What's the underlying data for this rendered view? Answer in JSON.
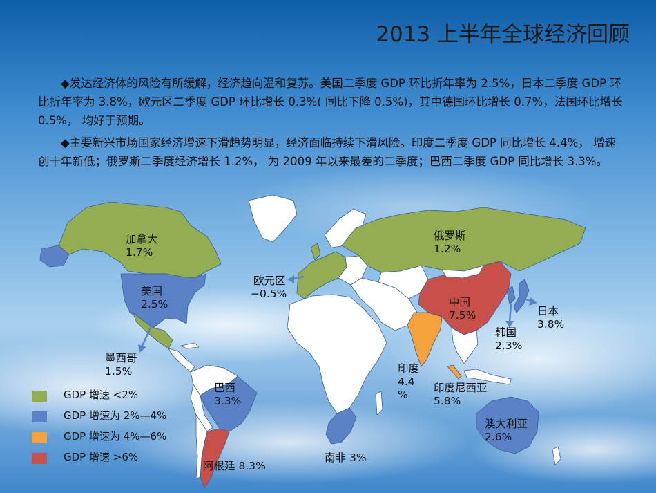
{
  "title": "2013 上半年全球经济回顾",
  "paragraphs": [
    "◆发达经济体的风险有所缓解，经济趋向温和复苏。美国二季度 GDP 环比折年率为 2.5%，日本二季度 GDP 环比折年率为 3.8%，欧元区二季度 GDP 环比增长 0.3%( 同比下降 0.5%)，其中德国环比增长 0.7%，法国环比增长 0.5%， 均好于预期。",
    "◆主要新兴市场国家经济增速下滑趋势明显，经济面临持续下滑风险。印度二季度 GDP 同比增长 4.4%， 增速创十年新低；俄罗斯二季度经济增长 1.2%， 为 2009 年以来最差的二季度；巴西二季度 GDP 同比增长 3.3%。"
  ],
  "colors": {
    "green": "#92ad52",
    "blue": "#5b82c6",
    "orange": "#f5a13c",
    "red": "#c8504a",
    "white_land": "#ffffff",
    "border": "#3d5f94"
  },
  "regions": [
    {
      "name": "加拿大",
      "value": "1.7%",
      "color": "green"
    },
    {
      "name": "美国",
      "value": "2.5%",
      "color": "blue"
    },
    {
      "name": "墨西哥",
      "value": "1.5%",
      "color": "green"
    },
    {
      "name": "欧元区",
      "value": "−0.5%",
      "color": "green"
    },
    {
      "name": "俄罗斯",
      "value": "1.2%",
      "color": "green"
    },
    {
      "name": "中国",
      "value": "7.5%",
      "color": "red"
    },
    {
      "name": "日本",
      "value": "3.8%",
      "color": "blue"
    },
    {
      "name": "韩国",
      "value": "2.3%",
      "color": "blue"
    },
    {
      "name": "印度",
      "value_lines": [
        "4.4",
        "%"
      ],
      "color": "orange"
    },
    {
      "name": "印度尼西亚",
      "value": "5.8%",
      "color": "orange"
    },
    {
      "name": "巴西",
      "value": "3.3%",
      "color": "blue"
    },
    {
      "name": "阿根廷",
      "value": "8.3%",
      "color": "red"
    },
    {
      "name": "南非",
      "value": "3%",
      "color": "blue"
    },
    {
      "name": "澳大利亚",
      "value": "2.6%",
      "color": "blue"
    }
  ],
  "legend": [
    {
      "label": "GDP 增速 <2%",
      "color": "green"
    },
    {
      "label": "GDP 增速为 2%—4%",
      "color": "blue"
    },
    {
      "label": "GDP 增速为 4%—6%",
      "color": "orange"
    },
    {
      "label": "GDP 增速 >6%",
      "color": "red"
    }
  ]
}
